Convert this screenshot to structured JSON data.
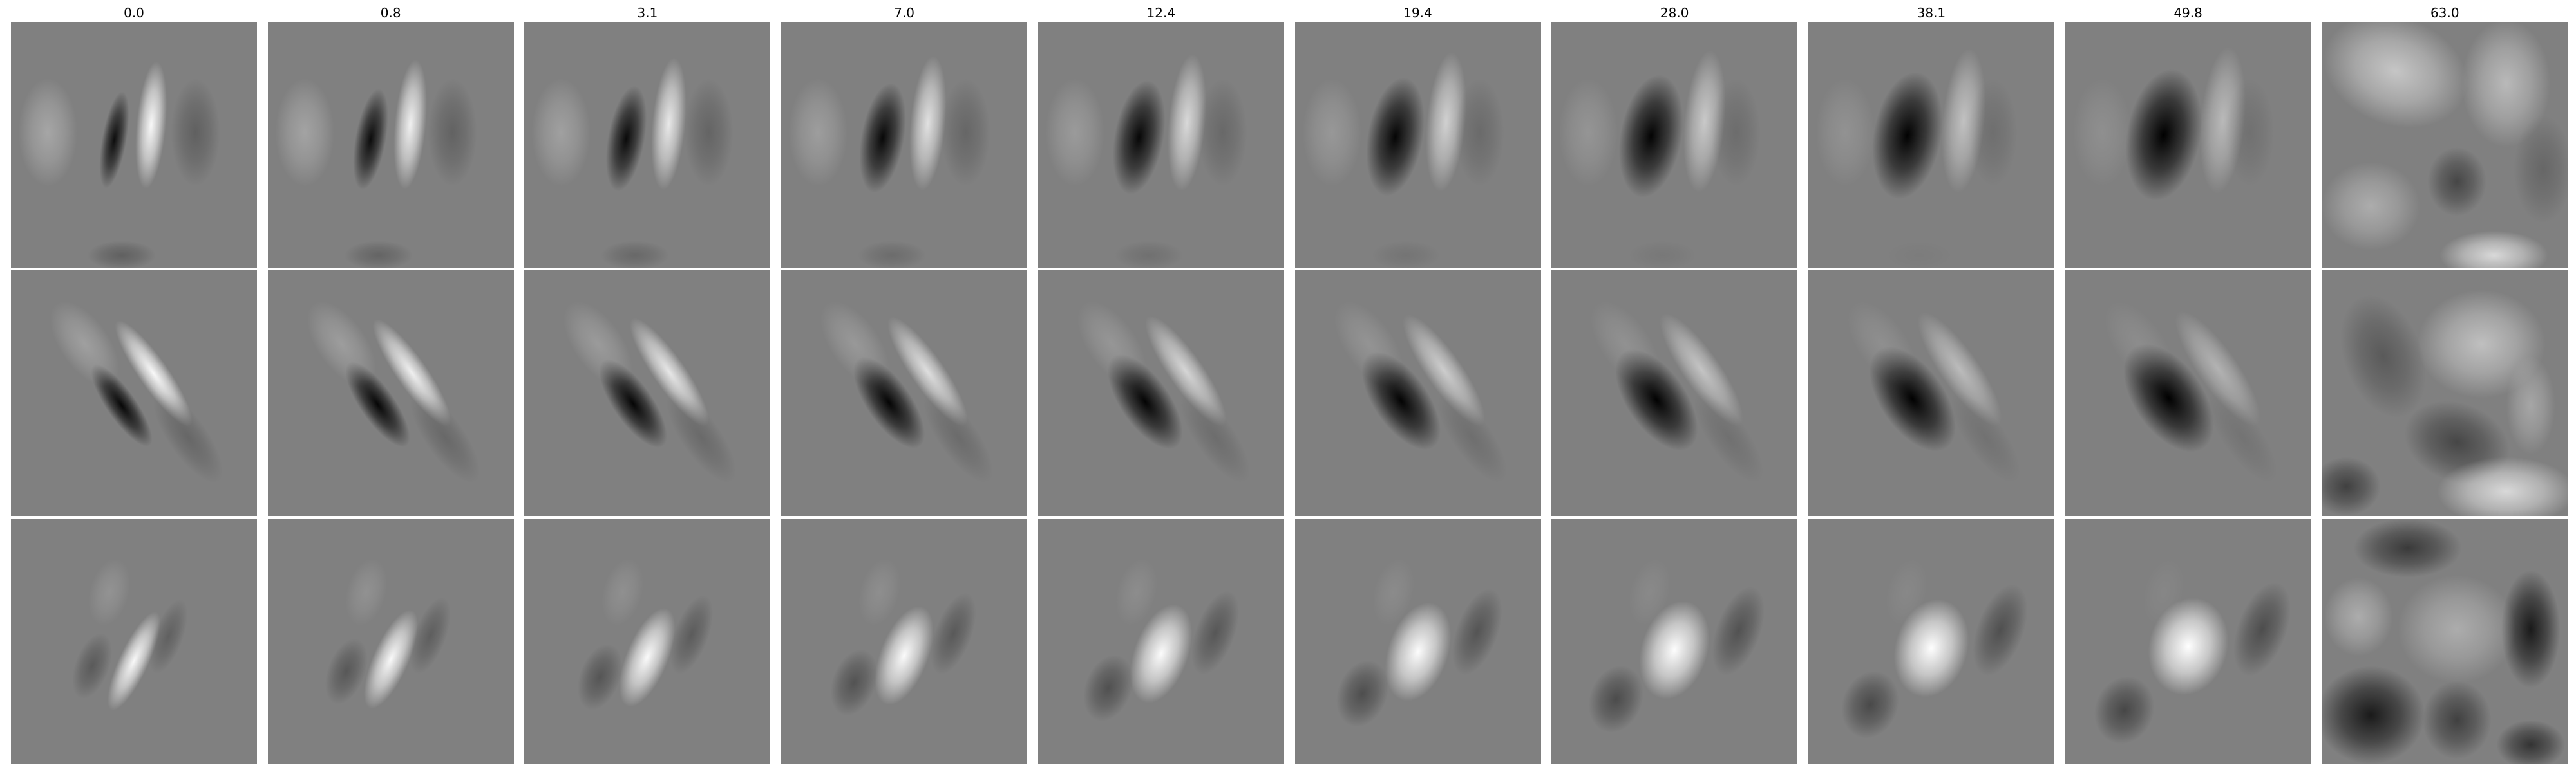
{
  "figure": {
    "column_titles": [
      "0.0",
      "0.8",
      "3.1",
      "7.0",
      "12.4",
      "19.4",
      "28.0",
      "38.1",
      "49.8",
      "63.0"
    ],
    "rows": 3,
    "background": "#808080"
  }
}
